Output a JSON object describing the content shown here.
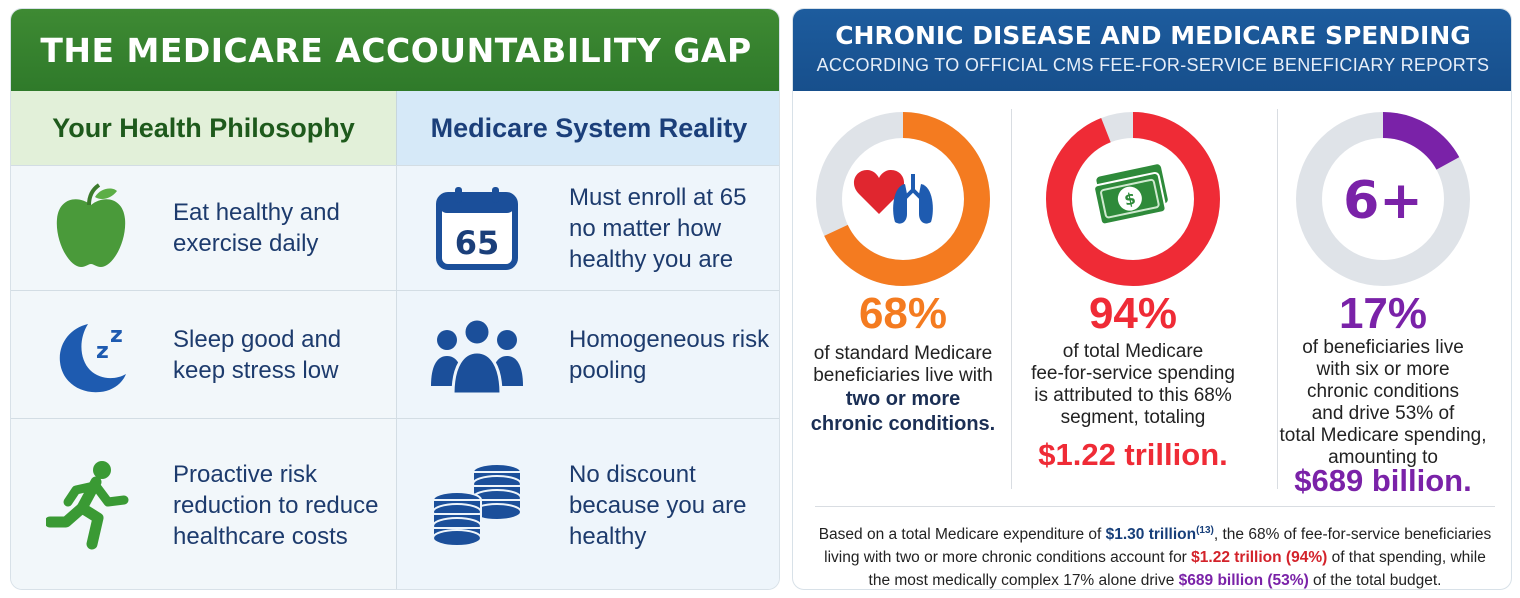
{
  "left": {
    "title": "THE MEDICARE ACCOUNTABILITY GAP",
    "col_left_heading": "Your Health Philosophy",
    "col_right_heading": "Medicare System Reality",
    "rows": [
      {
        "left_icon": "apple-icon",
        "left_text": "Eat healthy and exercise daily",
        "right_icon": "calendar-icon",
        "right_icon_text": "65",
        "right_text": "Must enroll at 65 no matter how healthy you are"
      },
      {
        "left_icon": "moon-sleep-icon",
        "left_icon_text": "z z",
        "left_text": "Sleep good and keep stress low",
        "right_icon": "people-group-icon",
        "right_text": "Homogeneous risk pooling"
      },
      {
        "left_icon": "running-person-icon",
        "left_text": "Proactive risk reduction to reduce healthcare costs",
        "right_icon": "coin-stacks-icon",
        "right_text": "No discount because you are healthy"
      }
    ]
  },
  "right": {
    "title": "CHRONIC DISEASE AND MEDICARE SPENDING",
    "subtitle": "ACCORDING TO OFFICIAL CMS FEE-FOR-SERVICE BENEFICIARY REPORTS",
    "stats": [
      {
        "percent": "68%",
        "fill_fraction": 0.68,
        "icon": "heart-lungs-icon",
        "color": "#f47b20",
        "desc_lines": [
          "of standard Medicare",
          "beneficiaries live with"
        ],
        "bold_lines": [
          "two or more",
          "chronic conditions."
        ]
      },
      {
        "percent": "94%",
        "fill_fraction": 0.94,
        "icon": "money-icon",
        "color": "#ef2b36",
        "desc_lines": [
          "of total Medicare",
          "fee-for-service spending",
          "is attributed to this 68%",
          "segment, totaling"
        ],
        "amount": "$1.22 trillion."
      },
      {
        "percent": "17%",
        "fill_fraction": 0.17,
        "icon_text": "6+",
        "color": "#7a22a8",
        "desc_lines": [
          "of beneficiaries live",
          "with six or more",
          "chronic conditions",
          "and drive 53% of",
          "total Medicare spending,",
          "amounting to"
        ],
        "amount": "$689 billion."
      }
    ],
    "footnote": {
      "p1": "Based on a total Medicare expenditure of ",
      "total": "$1.30 trillion",
      "ref": "(13)",
      "p2": ", the 68% of fee-for-service beneficiaries living with two or more chronic conditions account for ",
      "red": "$1.22 trillion (94%)",
      "p3": " of that spending, while the most medically complex 17% alone drive ",
      "purple": "$689 billion (53%)",
      "p4": " of the total budget."
    }
  },
  "colors": {
    "green": "#2f7a2a",
    "blue": "#174f8c",
    "navy": "#1d3b6d",
    "orange": "#f47b20",
    "red": "#ef2b36",
    "purple": "#7a22a8",
    "track": "#dfe3e8"
  }
}
